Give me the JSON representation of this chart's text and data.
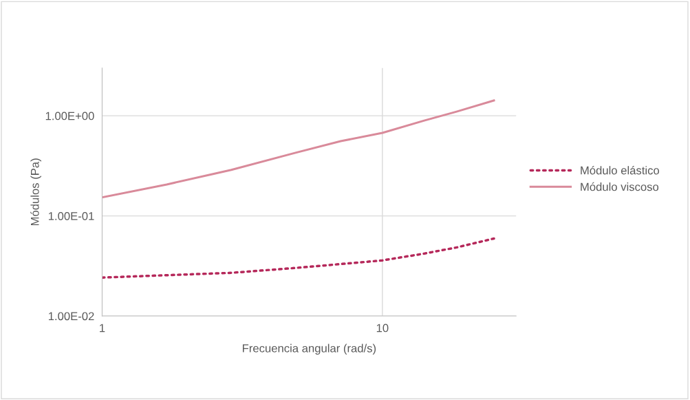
{
  "chart_data": {
    "type": "line",
    "xlabel": "Frecuencia angular (rad/s)",
    "ylabel": "Módulos (Pa)",
    "log": "xy",
    "xlim": [
      1,
      30
    ],
    "ylim": [
      0.01,
      3
    ],
    "xticks": [
      1,
      10
    ],
    "yticks": [
      {
        "value": 0.01,
        "label": "1.00E-02"
      },
      {
        "value": 0.1,
        "label": "1.00E-01"
      },
      {
        "value": 1,
        "label": "1.00E+00"
      }
    ],
    "grid": true,
    "legend": "right",
    "series": [
      {
        "name": "Módulo elástico",
        "color": "#b5285a",
        "line_style": "dotted",
        "x": [
          1,
          2.89,
          4.9,
          10,
          14.1,
          18.4,
          25
        ],
        "values": [
          0.0242,
          0.027,
          0.0302,
          0.0359,
          0.042,
          0.0484,
          0.0594
        ]
      },
      {
        "name": "Módulo viscoso",
        "color": "#d98a9a",
        "line_style": "solid",
        "x": [
          1,
          1.7,
          2.89,
          4.9,
          7.1,
          10,
          14.1,
          18.4,
          25
        ],
        "values": [
          0.153,
          0.206,
          0.288,
          0.427,
          0.558,
          0.675,
          0.895,
          1.1,
          1.42
        ]
      }
    ]
  }
}
